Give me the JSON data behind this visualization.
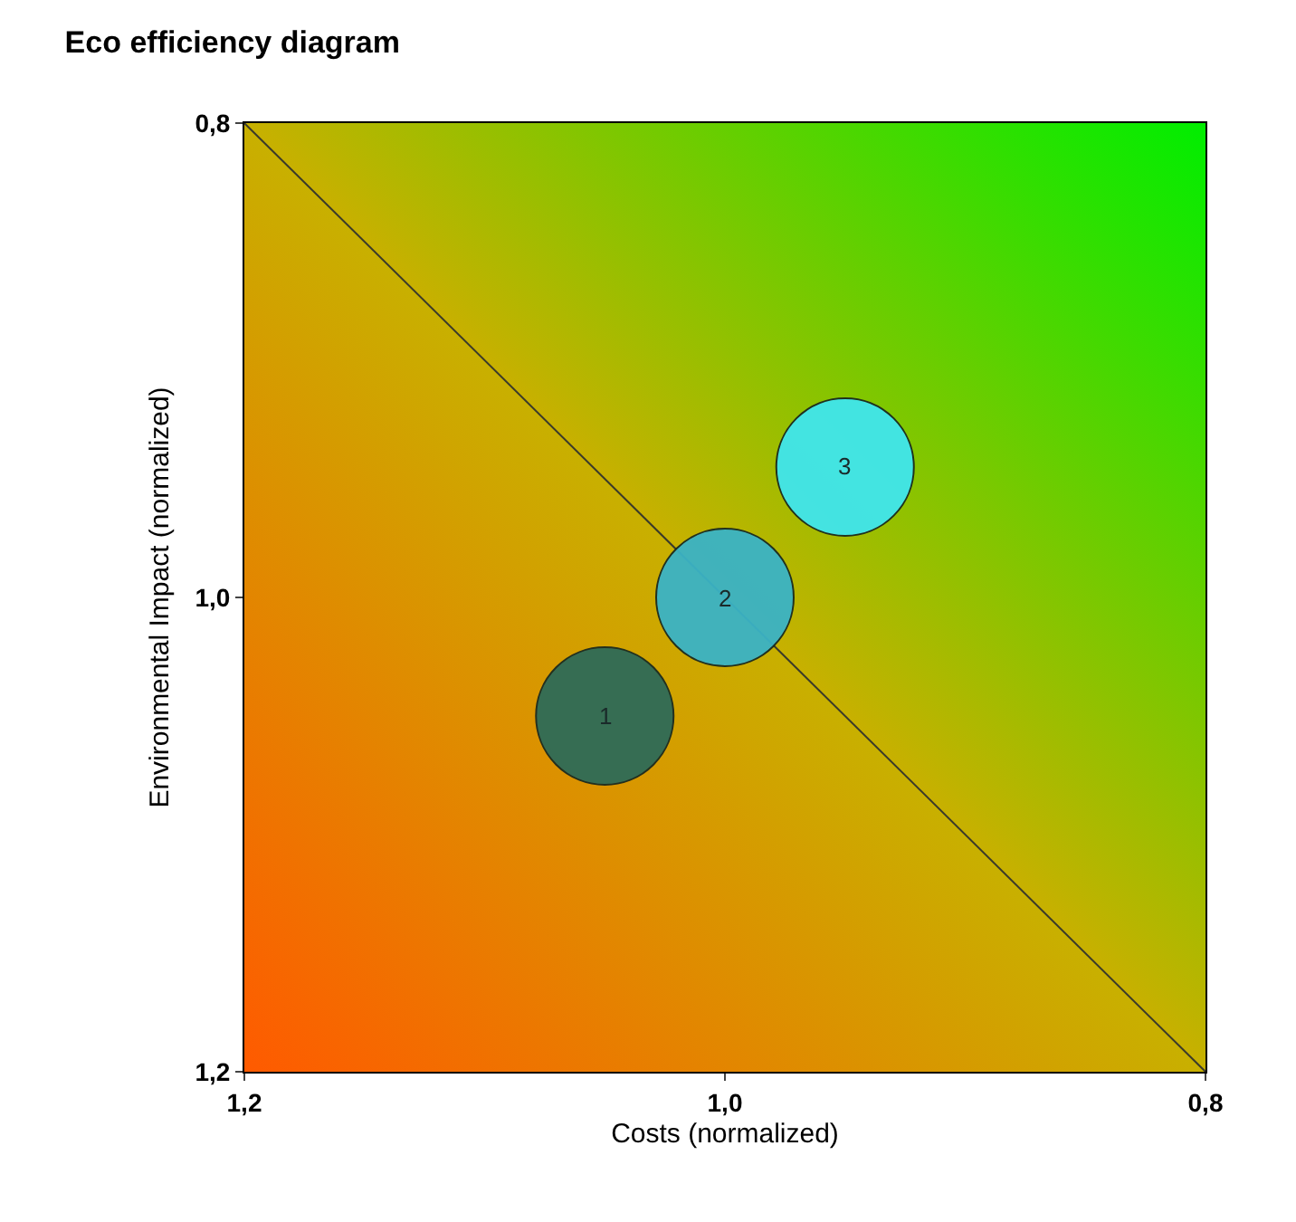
{
  "chart_data": {
    "type": "bubble",
    "title": "Eco efficiency diagram",
    "xlabel": "Costs (normalized)",
    "ylabel": "Environmental Impact (normalized)",
    "xlim": [
      1.2,
      0.8
    ],
    "ylim": [
      1.2,
      0.8
    ],
    "xticks": [
      {
        "value": 1.2,
        "label": "1,2"
      },
      {
        "value": 1.0,
        "label": "1,0"
      },
      {
        "value": 0.8,
        "label": "0,8"
      }
    ],
    "yticks": [
      {
        "value": 1.2,
        "label": "1,2"
      },
      {
        "value": 1.0,
        "label": "1,0"
      },
      {
        "value": 0.8,
        "label": "0,8"
      }
    ],
    "grid": false,
    "series": [
      {
        "type": "line",
        "color": "#3a3a2a",
        "x": [
          1.2,
          0.8
        ],
        "values": [
          0.8,
          1.2
        ]
      },
      {
        "x": [
          1.05,
          1.0,
          0.95
        ],
        "values": [
          1.05,
          1.0,
          0.945
        ],
        "sizes": [
          1,
          1,
          1
        ],
        "colors": [
          "#2e6b58",
          "#3ab3c6",
          "#3fe6ee"
        ]
      }
    ],
    "annotations": [
      {
        "text": "1",
        "x": 1.05,
        "y": 1.05
      },
      {
        "text": "2",
        "x": 1.0,
        "y": 1.0
      },
      {
        "text": "3",
        "x": 0.95,
        "y": 0.945
      }
    ]
  }
}
